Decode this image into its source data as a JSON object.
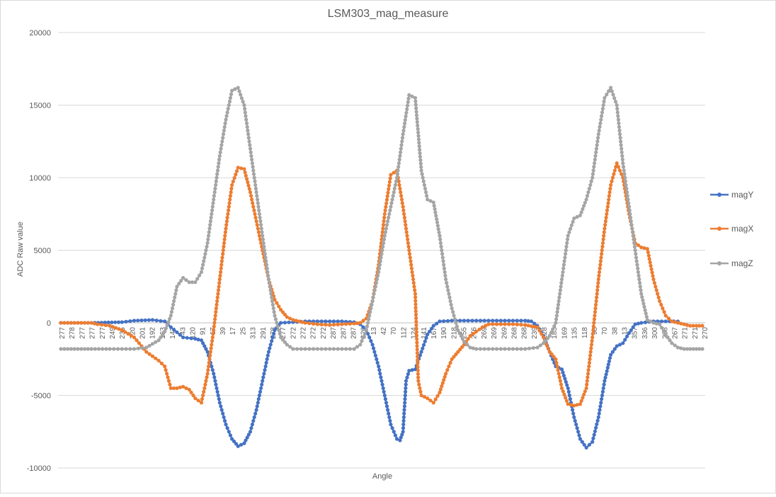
{
  "chart_data": {
    "type": "line",
    "title": "LSM303_mag_measure",
    "xlabel": "Angle",
    "ylabel": "ADC Raw value",
    "ylim": [
      -10000,
      20000
    ],
    "y_ticks": [
      -10000,
      -5000,
      0,
      5000,
      10000,
      15000,
      20000
    ],
    "x_tick_labels": [
      "277",
      "278",
      "277",
      "277",
      "277",
      "249",
      "235",
      "220",
      "201",
      "192",
      "163",
      "142",
      "43",
      "120",
      "91",
      "67",
      "39",
      "17",
      "25",
      "313",
      "291",
      "278",
      "277",
      "272",
      "272",
      "272",
      "272",
      "287",
      "287",
      "287",
      "326",
      "13",
      "42",
      "70",
      "112",
      "124",
      "141",
      "167",
      "190",
      "218",
      "255",
      "276",
      "269",
      "269",
      "269",
      "268",
      "268",
      "239",
      "228",
      "183",
      "169",
      "135",
      "118",
      "98",
      "70",
      "38",
      "13",
      "357",
      "336",
      "300",
      "288",
      "267",
      "271",
      "271",
      "270"
    ],
    "grid": "horizontal",
    "legend_position": "right",
    "series": [
      {
        "name": "magY",
        "color": "#4472C4",
        "points": [
          [
            0,
            0
          ],
          [
            5,
            0
          ],
          [
            10,
            50
          ],
          [
            12,
            150
          ],
          [
            15,
            200
          ],
          [
            17,
            100
          ],
          [
            18,
            -300
          ],
          [
            20,
            -1000
          ],
          [
            22,
            -1100
          ],
          [
            23,
            -1200
          ],
          [
            24,
            -2000
          ],
          [
            25,
            -3500
          ],
          [
            26,
            -5500
          ],
          [
            27,
            -7000
          ],
          [
            28,
            -8000
          ],
          [
            29,
            -8500
          ],
          [
            30,
            -8300
          ],
          [
            31,
            -7500
          ],
          [
            32,
            -6000
          ],
          [
            33,
            -4000
          ],
          [
            34,
            -2000
          ],
          [
            35,
            -500
          ],
          [
            36,
            0
          ],
          [
            38,
            50
          ],
          [
            40,
            100
          ],
          [
            42,
            100
          ],
          [
            44,
            100
          ],
          [
            46,
            100
          ],
          [
            48,
            50
          ],
          [
            49,
            -100
          ],
          [
            50,
            -500
          ],
          [
            51,
            -1500
          ],
          [
            52,
            -3000
          ],
          [
            53,
            -5000
          ],
          [
            54,
            -7000
          ],
          [
            55,
            -8000
          ],
          [
            55.5,
            -8100
          ],
          [
            56,
            -7500
          ],
          [
            56.5,
            -4000
          ],
          [
            57,
            -3300
          ],
          [
            58,
            -3200
          ],
          [
            59,
            -2000
          ],
          [
            60,
            -800
          ],
          [
            61,
            -200
          ],
          [
            62,
            100
          ],
          [
            64,
            150
          ],
          [
            66,
            150
          ],
          [
            68,
            150
          ],
          [
            70,
            150
          ],
          [
            72,
            150
          ],
          [
            74,
            150
          ],
          [
            76,
            150
          ],
          [
            77,
            100
          ],
          [
            78,
            -200
          ],
          [
            79,
            -900
          ],
          [
            80,
            -2000
          ],
          [
            81,
            -3000
          ],
          [
            82,
            -3200
          ],
          [
            83,
            -4500
          ],
          [
            84,
            -6500
          ],
          [
            85,
            -8000
          ],
          [
            86,
            -8600
          ],
          [
            87,
            -8200
          ],
          [
            88,
            -6500
          ],
          [
            89,
            -4000
          ],
          [
            90,
            -2200
          ],
          [
            91,
            -1600
          ],
          [
            92,
            -1400
          ],
          [
            93,
            -700
          ],
          [
            94,
            -100
          ],
          [
            95,
            0
          ],
          [
            97,
            100
          ],
          [
            99,
            100
          ],
          [
            101,
            100
          ]
        ]
      },
      {
        "name": "magX",
        "color": "#ED7D31",
        "points": [
          [
            0,
            0
          ],
          [
            5,
            0
          ],
          [
            6,
            -100
          ],
          [
            8,
            -200
          ],
          [
            10,
            -500
          ],
          [
            12,
            -1000
          ],
          [
            14,
            -2000
          ],
          [
            16,
            -2600
          ],
          [
            17,
            -3000
          ],
          [
            18,
            -4500
          ],
          [
            19,
            -4500
          ],
          [
            20,
            -4400
          ],
          [
            21,
            -4600
          ],
          [
            22,
            -5200
          ],
          [
            23,
            -5500
          ],
          [
            24,
            -3500
          ],
          [
            25,
            -500
          ],
          [
            26,
            3000
          ],
          [
            27,
            6500
          ],
          [
            28,
            9500
          ],
          [
            29,
            10700
          ],
          [
            30,
            10600
          ],
          [
            31,
            9000
          ],
          [
            32,
            7000
          ],
          [
            33,
            5000
          ],
          [
            34,
            3000
          ],
          [
            35,
            1600
          ],
          [
            36,
            900
          ],
          [
            37,
            400
          ],
          [
            38,
            200
          ],
          [
            40,
            0
          ],
          [
            42,
            -100
          ],
          [
            44,
            -150
          ],
          [
            46,
            -100
          ],
          [
            48,
            -50
          ],
          [
            49,
            0
          ],
          [
            50,
            300
          ],
          [
            51,
            1500
          ],
          [
            52,
            4000
          ],
          [
            53,
            7500
          ],
          [
            54,
            10200
          ],
          [
            55,
            10500
          ],
          [
            56,
            8000
          ],
          [
            57,
            5000
          ],
          [
            58,
            2000
          ],
          [
            58.5,
            -4000
          ],
          [
            59,
            -5000
          ],
          [
            60,
            -5200
          ],
          [
            61,
            -5500
          ],
          [
            62,
            -4800
          ],
          [
            63,
            -3500
          ],
          [
            64,
            -2500
          ],
          [
            65,
            -2000
          ],
          [
            66,
            -1500
          ],
          [
            67,
            -900
          ],
          [
            68,
            -600
          ],
          [
            69,
            -300
          ],
          [
            70,
            -100
          ],
          [
            72,
            -100
          ],
          [
            74,
            -100
          ],
          [
            76,
            -150
          ],
          [
            78,
            -300
          ],
          [
            79,
            -1000
          ],
          [
            80,
            -2000
          ],
          [
            81,
            -2500
          ],
          [
            82,
            -4500
          ],
          [
            83,
            -5600
          ],
          [
            84,
            -5700
          ],
          [
            85,
            -5600
          ],
          [
            86,
            -4500
          ],
          [
            87,
            -1000
          ],
          [
            88,
            3000
          ],
          [
            89,
            6500
          ],
          [
            90,
            9500
          ],
          [
            91,
            11000
          ],
          [
            92,
            10000
          ],
          [
            93,
            7500
          ],
          [
            94,
            5500
          ],
          [
            95,
            5200
          ],
          [
            96,
            5100
          ],
          [
            97,
            3000
          ],
          [
            98,
            1500
          ],
          [
            99,
            500
          ],
          [
            100,
            100
          ],
          [
            101,
            0
          ],
          [
            102,
            -100
          ],
          [
            103,
            -200
          ],
          [
            104,
            -200
          ],
          [
            105,
            -200
          ]
        ]
      },
      {
        "name": "magZ",
        "color": "#A5A5A5",
        "points": [
          [
            0,
            -1800
          ],
          [
            5,
            -1800
          ],
          [
            8,
            -1800
          ],
          [
            10,
            -1800
          ],
          [
            12,
            -1800
          ],
          [
            14,
            -1700
          ],
          [
            16,
            -1200
          ],
          [
            17,
            -600
          ],
          [
            18,
            500
          ],
          [
            19,
            2500
          ],
          [
            20,
            3100
          ],
          [
            21,
            2800
          ],
          [
            22,
            2800
          ],
          [
            23,
            3500
          ],
          [
            24,
            5500
          ],
          [
            25,
            8500
          ],
          [
            26,
            11500
          ],
          [
            27,
            14000
          ],
          [
            28,
            16000
          ],
          [
            29,
            16200
          ],
          [
            30,
            15000
          ],
          [
            31,
            12000
          ],
          [
            32,
            9000
          ],
          [
            33,
            6000
          ],
          [
            34,
            3000
          ],
          [
            35,
            500
          ],
          [
            36,
            -1000
          ],
          [
            37,
            -1500
          ],
          [
            38,
            -1800
          ],
          [
            40,
            -1800
          ],
          [
            42,
            -1800
          ],
          [
            44,
            -1800
          ],
          [
            46,
            -1800
          ],
          [
            48,
            -1800
          ],
          [
            49,
            -1500
          ],
          [
            50,
            -500
          ],
          [
            51,
            1500
          ],
          [
            52,
            3500
          ],
          [
            53,
            6000
          ],
          [
            54,
            8000
          ],
          [
            55,
            10000
          ],
          [
            56,
            13000
          ],
          [
            57,
            15700
          ],
          [
            58,
            15500
          ],
          [
            59,
            10500
          ],
          [
            60,
            8500
          ],
          [
            61,
            8300
          ],
          [
            62,
            6000
          ],
          [
            63,
            3000
          ],
          [
            64,
            1000
          ],
          [
            65,
            -500
          ],
          [
            66,
            -1300
          ],
          [
            67,
            -1700
          ],
          [
            68,
            -1800
          ],
          [
            70,
            -1800
          ],
          [
            72,
            -1800
          ],
          [
            74,
            -1800
          ],
          [
            76,
            -1800
          ],
          [
            78,
            -1700
          ],
          [
            79,
            -1400
          ],
          [
            80,
            -900
          ],
          [
            81,
            0
          ],
          [
            82,
            3000
          ],
          [
            83,
            6000
          ],
          [
            84,
            7200
          ],
          [
            85,
            7400
          ],
          [
            86,
            8500
          ],
          [
            87,
            10000
          ],
          [
            88,
            13000
          ],
          [
            89,
            15500
          ],
          [
            90,
            16200
          ],
          [
            91,
            15000
          ],
          [
            92,
            11000
          ],
          [
            93,
            8000
          ],
          [
            94,
            5000
          ],
          [
            95,
            2000
          ],
          [
            96,
            200
          ],
          [
            97,
            0
          ],
          [
            98,
            -100
          ],
          [
            99,
            -800
          ],
          [
            100,
            -1400
          ],
          [
            101,
            -1700
          ],
          [
            102,
            -1800
          ],
          [
            103,
            -1800
          ],
          [
            104,
            -1800
          ],
          [
            105,
            -1800
          ]
        ]
      }
    ]
  }
}
